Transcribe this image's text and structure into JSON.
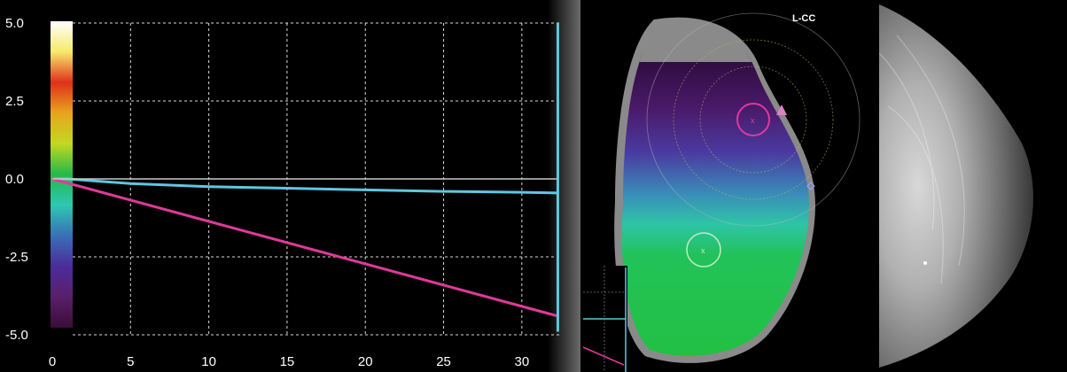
{
  "chart_data": {
    "type": "line",
    "x_ticks": [
      "0",
      "5",
      "10",
      "15",
      "20",
      "25",
      "30"
    ],
    "y_ticks": [
      "5.0",
      "2.5",
      "0.0",
      "-2.5",
      "-5.0"
    ],
    "xlim": [
      0,
      32.5
    ],
    "ylim": [
      -5.0,
      5.0
    ],
    "grid": true,
    "series": [
      {
        "color": "#5fc7e0",
        "x": [
          0,
          1,
          5,
          10,
          15,
          20,
          25,
          30,
          32.3
        ],
        "y": [
          0.0,
          0.0,
          -0.15,
          -0.25,
          -0.3,
          -0.35,
          -0.4,
          -0.43,
          -0.45
        ]
      },
      {
        "color": "#e0399a",
        "x": [
          0,
          32.3
        ],
        "y": [
          0.0,
          -4.4
        ]
      },
      {
        "color": "#c8c8c8",
        "x": [
          0,
          32.3
        ],
        "y": [
          0.0,
          0.0
        ]
      },
      {
        "color": "#5fc7e0",
        "x": [
          32.3,
          32.3
        ],
        "y": [
          5.0,
          -4.9
        ]
      }
    ],
    "colorbar": {
      "range": [
        -5.0,
        5.0
      ],
      "colors": [
        "#ffffff",
        "#f6e96a",
        "#e0301a",
        "#e8a51e",
        "#c2d822",
        "#23b94a",
        "#2ec8b0",
        "#3a6fb5",
        "#4b2c9a",
        "#5a1f6a",
        "#3a0d3a"
      ]
    }
  },
  "map": {
    "view_label": "L-CC"
  }
}
